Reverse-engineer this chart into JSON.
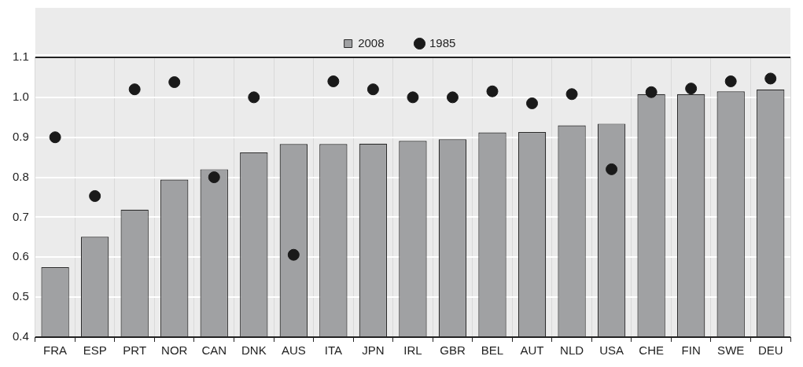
{
  "chart_data": {
    "type": "bar",
    "categories": [
      "FRA",
      "ESP",
      "PRT",
      "NOR",
      "CAN",
      "DNK",
      "AUS",
      "ITA",
      "JPN",
      "IRL",
      "GBR",
      "BEL",
      "AUT",
      "NLD",
      "USA",
      "CHE",
      "FIN",
      "SWE",
      "DEU"
    ],
    "series": [
      {
        "name": "2008",
        "color": "#a0a1a3",
        "values": [
          0.575,
          0.651,
          0.719,
          0.794,
          0.82,
          0.862,
          0.883,
          0.883,
          0.884,
          0.891,
          0.895,
          0.912,
          0.913,
          0.93,
          0.934,
          1.008,
          1.008,
          1.015,
          1.02
        ]
      },
      {
        "name": "1985",
        "type": "scatter",
        "color": "#1a1a1a",
        "marker": "circle",
        "values": [
          0.9,
          0.753,
          1.02,
          1.038,
          0.8,
          1.0,
          0.606,
          1.04,
          1.02,
          1.0,
          1.0,
          1.015,
          0.985,
          1.008,
          0.82,
          1.013,
          1.022,
          1.04,
          1.047
        ]
      }
    ],
    "ylim": [
      0.4,
      1.1
    ],
    "yticks": [
      0.4,
      0.5,
      0.6,
      0.7,
      0.8,
      0.9,
      {
        "value": 1,
        "label": "1.0"
      },
      1.1
    ],
    "grid": true,
    "legend": "top"
  }
}
